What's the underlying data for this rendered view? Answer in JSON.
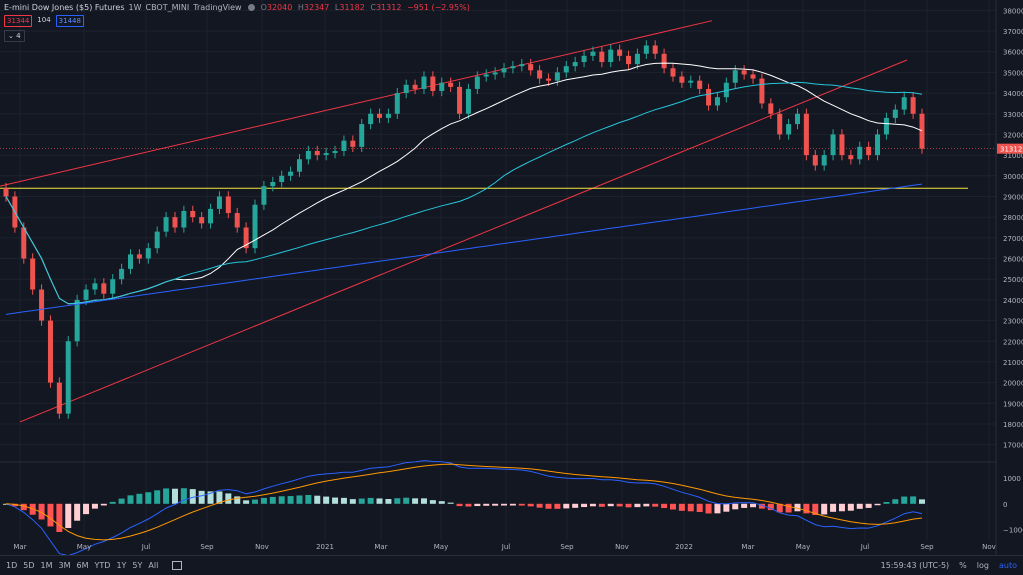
{
  "header": {
    "symbol": "E-mini Dow Jones ($5) Futures",
    "interval": "1W",
    "exchange": "CBOT_MINI",
    "source": "TradingView",
    "ohlc": [
      {
        "label": "O",
        "value": "32040"
      },
      {
        "label": "H",
        "value": "32347"
      },
      {
        "label": "L",
        "value": "31182"
      },
      {
        "label": "C",
        "value": "31312"
      }
    ],
    "change": "−951 (−2.95%)",
    "badges": {
      "bid": "31344",
      "spread": "104",
      "ask": "31448"
    },
    "indicator_count": "4"
  },
  "price_axis": {
    "ticks": [
      "38000",
      "37000",
      "36000",
      "35000",
      "34000",
      "33000",
      "32000",
      "31000",
      "30000",
      "29000",
      "28000",
      "27000",
      "26000",
      "25000",
      "24000",
      "23000",
      "22000",
      "21000",
      "20000",
      "19000",
      "18000",
      "17000"
    ],
    "current_label": "31312"
  },
  "macd_axis": {
    "ticks": [
      "1000",
      "0",
      "−1000"
    ]
  },
  "time_axis": {
    "labels": [
      "Mar",
      "May",
      "Jul",
      "Sep",
      "Nov",
      "2021",
      "Mar",
      "May",
      "Jul",
      "Sep",
      "Nov",
      "2022",
      "Mar",
      "May",
      "Jul",
      "Sep",
      "Nov"
    ]
  },
  "bottom_bar": {
    "timeframes": [
      "1D",
      "5D",
      "1M",
      "3M",
      "6M",
      "YTD",
      "1Y",
      "5Y",
      "All"
    ],
    "clock": "15:59:43 (UTC-5)",
    "percent": "%",
    "log": "log",
    "auto": "auto"
  },
  "colors": {
    "background": "#131722",
    "up": "#26a69a",
    "down": "#ef5350",
    "ma20": "#ffffff",
    "ma50": "#26c6da",
    "ma200": "#2962ff",
    "channel": "#f23645",
    "support": "#f5e63b"
  },
  "chart_data": {
    "type": "candlestick",
    "y_range": [
      16500,
      38500
    ],
    "support_level": 29400,
    "weekly_closes_approx": [
      29000,
      27500,
      26000,
      24500,
      23000,
      20000,
      18500,
      22000,
      24000,
      24500,
      24800,
      24300,
      25000,
      25500,
      26200,
      26000,
      26500,
      27300,
      28000,
      27500,
      28300,
      28000,
      27700,
      28400,
      29000,
      28200,
      27500,
      26500,
      28600,
      29500,
      29700,
      30000,
      30200,
      30800,
      31200,
      31000,
      31100,
      31200,
      31700,
      31400,
      32500,
      33000,
      32800,
      33000,
      34000,
      34400,
      34200,
      34800,
      34100,
      34500,
      34300,
      33000,
      34200,
      34800,
      34900,
      35000,
      35200,
      35300,
      35400,
      35100,
      34700,
      34600,
      35000,
      35300,
      35500,
      35800,
      36000,
      35500,
      36100,
      35800,
      35400,
      35900,
      36300,
      35900,
      35200,
      34800,
      34500,
      34600,
      34200,
      33400,
      33800,
      34500,
      35100,
      34900,
      34700,
      33500,
      33000,
      32000,
      32500,
      33000,
      31000,
      30500,
      31000,
      32000,
      31000,
      30800,
      31400,
      31000,
      32000,
      32800,
      33200,
      33800,
      33000,
      31312
    ],
    "series": [
      {
        "name": "MA 20",
        "values_desc": "white moving average following price"
      },
      {
        "name": "MA 50",
        "values_desc": "teal moving average"
      },
      {
        "name": "MA 200",
        "values_desc": "blue moving average"
      }
    ]
  }
}
